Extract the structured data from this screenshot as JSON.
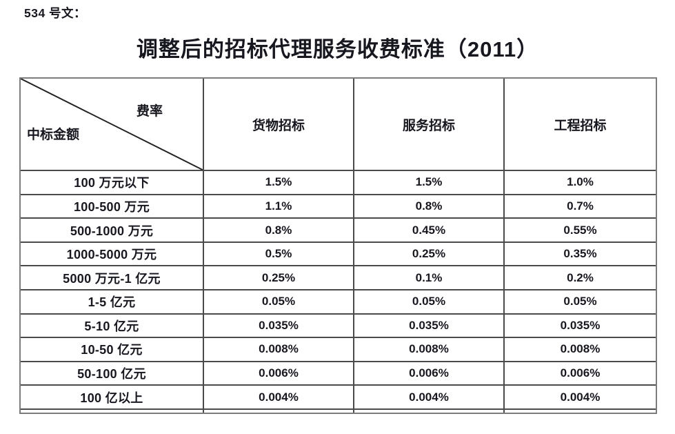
{
  "page": {
    "doc_label": "534 号文：",
    "title": "调整后的招标代理服务收费标准（2011）"
  },
  "table": {
    "corner": {
      "top_right": "费率",
      "bottom_left": "中标金额"
    },
    "columns": [
      "货物招标",
      "服务招标",
      "工程招标"
    ],
    "rows": [
      {
        "label": "100 万元以下",
        "values": [
          "1.5%",
          "1.5%",
          "1.0%"
        ]
      },
      {
        "label": "100-500 万元",
        "values": [
          "1.1%",
          "0.8%",
          "0.7%"
        ]
      },
      {
        "label": "500-1000 万元",
        "values": [
          "0.8%",
          "0.45%",
          "0.55%"
        ]
      },
      {
        "label": "1000-5000 万元",
        "values": [
          "0.5%",
          "0.25%",
          "0.35%"
        ]
      },
      {
        "label": "5000 万元-1 亿元",
        "values": [
          "0.25%",
          "0.1%",
          "0.2%"
        ]
      },
      {
        "label": "1-5 亿元",
        "values": [
          "0.05%",
          "0.05%",
          "0.05%"
        ]
      },
      {
        "label": "5-10 亿元",
        "values": [
          "0.035%",
          "0.035%",
          "0.035%"
        ]
      },
      {
        "label": "10-50 亿元",
        "values": [
          "0.008%",
          "0.008%",
          "0.008%"
        ]
      },
      {
        "label": "50-100 亿元",
        "values": [
          "0.006%",
          "0.006%",
          "0.006%"
        ]
      },
      {
        "label": "100 亿以上",
        "values": [
          "0.004%",
          "0.004%",
          "0.004%"
        ]
      }
    ]
  },
  "colors": {
    "background": "#ffffff",
    "text": "#17171f",
    "grid_line": "#4a4a4a",
    "frame_line": "#7c7c7c",
    "diagonal_line": "#222222"
  }
}
